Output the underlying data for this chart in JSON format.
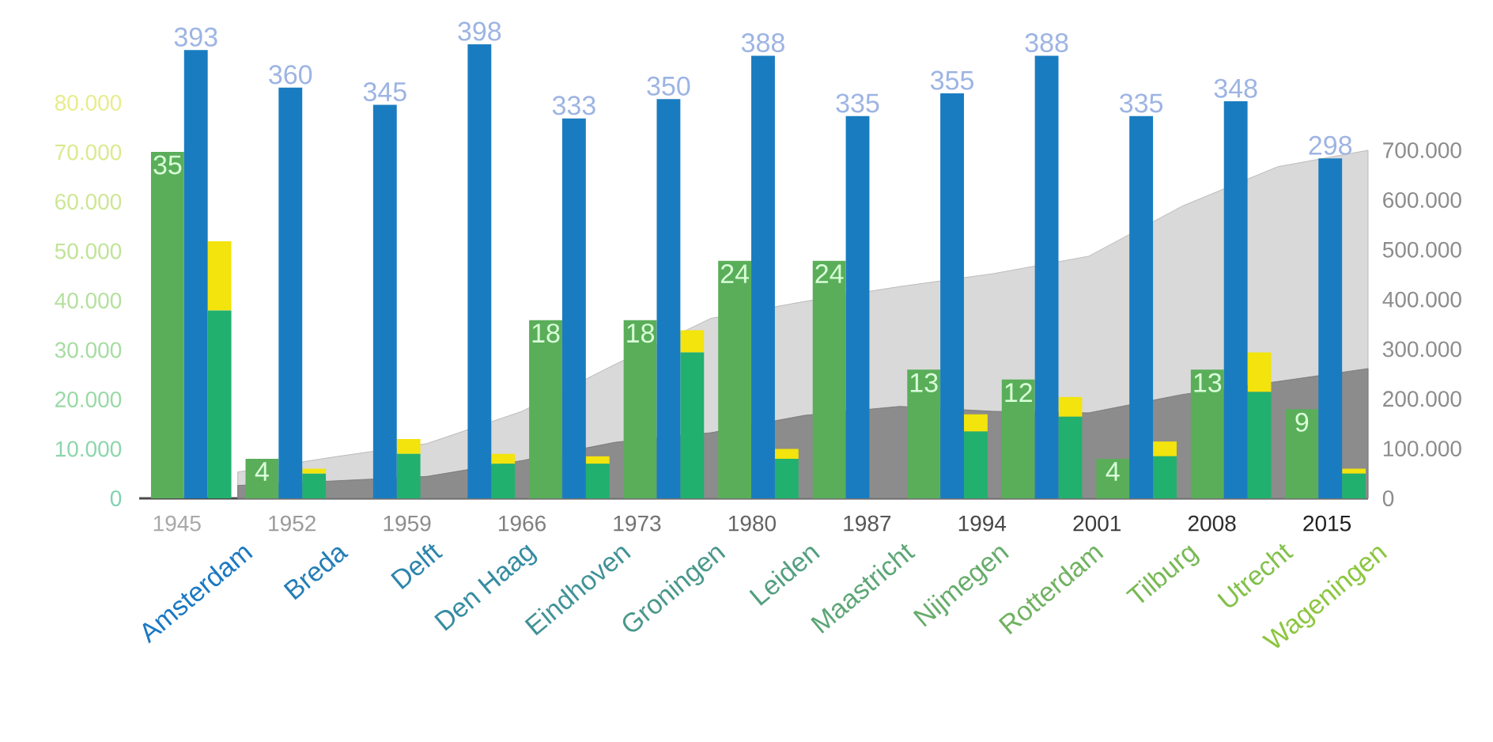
{
  "chart_data": [
    {
      "type": "bar",
      "stacked": true,
      "categories": [
        "Amsterdam",
        "Breda",
        "Delft",
        "Den Haag",
        "Eindhoven",
        "Groningen",
        "Leiden",
        "Maastricht",
        "Nijmegen",
        "Rotterdam",
        "Tilburg",
        "Utrecht",
        "Wageningen"
      ],
      "series": [
        {
          "color": "#22b06e",
          "values": [
            38000,
            5000,
            9000,
            7000,
            7000,
            29500,
            8000,
            null,
            13500,
            16500,
            8500,
            21500,
            5000
          ]
        },
        {
          "color": "#f2e40c",
          "values": [
            14000,
            1000,
            3000,
            2000,
            1500,
            4500,
            2000,
            null,
            3500,
            4000,
            3000,
            8000,
            1000
          ]
        }
      ],
      "ylim": [
        0,
        80000
      ],
      "yticks": [
        {
          "value": 0,
          "label": "0"
        },
        {
          "value": 10000,
          "label": "10.000"
        },
        {
          "value": 20000,
          "label": "20.000"
        },
        {
          "value": 30000,
          "label": "30.000"
        },
        {
          "value": 40000,
          "label": "40.000"
        },
        {
          "value": 50000,
          "label": "50.000"
        },
        {
          "value": 60000,
          "label": "60.000"
        },
        {
          "value": 70000,
          "label": "70.000"
        },
        {
          "value": 80000,
          "label": "80.000"
        }
      ]
    },
    {
      "type": "bar",
      "data_labels": true,
      "tick_labels": false,
      "color": "#5aae5a",
      "categories": [
        null,
        null,
        null,
        null,
        null,
        null,
        null,
        null,
        null,
        null,
        null,
        null,
        null
      ],
      "values": [
        35,
        4,
        null,
        null,
        18,
        18,
        24,
        24,
        13,
        12,
        4,
        13,
        9
      ]
    },
    {
      "type": "bar",
      "data_labels": true,
      "tick_labels": false,
      "color": "#1a7cc0",
      "categories": [
        null,
        null,
        null,
        null,
        null,
        null,
        null,
        null,
        null,
        null,
        null,
        null,
        null
      ],
      "values": [
        393,
        360,
        345,
        398,
        333,
        350,
        388,
        335,
        355,
        388,
        335,
        348,
        298
      ]
    },
    {
      "type": "area",
      "series": [
        {
          "color": "#d9d9d9",
          "x": [
            1948.7,
            1954.5,
            1960.2,
            1966,
            1971.7,
            1977.5,
            1983.2,
            1989,
            1994.7,
            2000.5,
            2006.2,
            2012,
            2017.5
          ],
          "values": [
            53000,
            83000,
            110000,
            175000,
            270000,
            362000,
            396000,
            426000,
            452000,
            487000,
            588000,
            667000,
            700000
          ]
        },
        {
          "color": "#8c8c8c",
          "x": [
            1948.7,
            1954.5,
            1960.2,
            1966,
            1971.7,
            1977.5,
            1983.2,
            1989,
            1994.7,
            2000.5,
            2006.2,
            2012,
            2017.5
          ],
          "values": [
            26000,
            35000,
            44000,
            76000,
            113000,
            132000,
            167000,
            185000,
            175000,
            172000,
            209000,
            235000,
            261000
          ]
        }
      ],
      "xlim": [
        1942.7,
        2017.5
      ],
      "xticks": [
        1945,
        1952,
        1959,
        1966,
        1973,
        1980,
        1987,
        1994,
        2001,
        2008,
        2015
      ],
      "ylim": [
        0,
        700000
      ],
      "yticks": [
        {
          "value": 0,
          "label": "0"
        },
        {
          "value": 100000,
          "label": "100.000"
        },
        {
          "value": 200000,
          "label": "200.000"
        },
        {
          "value": 300000,
          "label": "300.000"
        },
        {
          "value": 400000,
          "label": "400.000"
        },
        {
          "value": 500000,
          "label": "500.000"
        },
        {
          "value": 600000,
          "label": "600.000"
        },
        {
          "value": 700000,
          "label": "700.000"
        }
      ]
    }
  ]
}
